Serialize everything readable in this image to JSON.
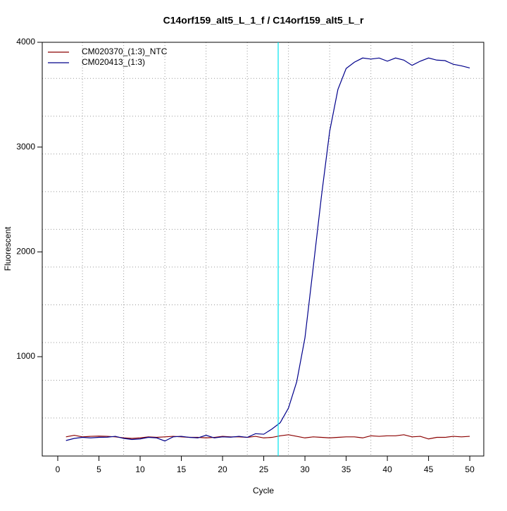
{
  "chart_data": {
    "type": "line",
    "title": "C14orf159_alt5_L_1_f / C14orf159_alt5_L_r",
    "x_label": "Cycle",
    "y_label": "Fluorescent",
    "x": [
      1,
      2,
      3,
      4,
      5,
      6,
      7,
      8,
      9,
      10,
      11,
      12,
      13,
      14,
      15,
      16,
      17,
      18,
      19,
      20,
      21,
      22,
      23,
      24,
      25,
      26,
      27,
      28,
      29,
      30,
      31,
      32,
      33,
      34,
      35,
      36,
      37,
      38,
      39,
      40,
      41,
      42,
      43,
      44,
      45,
      46,
      47,
      48,
      49,
      50
    ],
    "series": [
      {
        "name": "CM020370_(1:3)_NTC",
        "color": "#8b0000",
        "values": [
          235,
          250,
          235,
          240,
          242,
          240,
          235,
          225,
          220,
          225,
          235,
          230,
          235,
          240,
          235,
          230,
          230,
          225,
          230,
          240,
          235,
          235,
          230,
          240,
          225,
          230,
          245,
          255,
          240,
          225,
          235,
          230,
          225,
          230,
          235,
          235,
          225,
          245,
          240,
          245,
          245,
          255,
          235,
          240,
          215,
          230,
          230,
          240,
          235,
          240
        ]
      },
      {
        "name": "CM020413_(1:3)",
        "color": "#00008b",
        "values": [
          200,
          220,
          230,
          225,
          230,
          232,
          240,
          220,
          210,
          215,
          230,
          225,
          195,
          235,
          240,
          230,
          225,
          250,
          225,
          235,
          232,
          240,
          230,
          265,
          260,
          310,
          370,
          510,
          760,
          1180,
          1850,
          2530,
          3150,
          3550,
          3750,
          3810,
          3850,
          3840,
          3850,
          3820,
          3850,
          3830,
          3780,
          3820,
          3850,
          3830,
          3825,
          3790,
          3775,
          3755
        ]
      }
    ],
    "threshold_cycle": 26.75,
    "threshold_color": "#00e5ee",
    "xlim": [
      -1.88,
      51.7
    ],
    "ylim": [
      52,
      4000
    ],
    "xticks": [
      0,
      5,
      10,
      15,
      20,
      25,
      30,
      35,
      40,
      45,
      50
    ],
    "yticks": [
      1000,
      2000,
      3000,
      4000
    ],
    "grid": true,
    "xgrid": [
      3,
      8,
      13,
      18,
      23,
      28,
      33,
      38,
      43,
      48
    ],
    "ygrid": [
      415,
      775,
      1135,
      1495,
      1855,
      2215,
      2575,
      2935,
      3295,
      3655
    ],
    "legend": "top-left"
  }
}
